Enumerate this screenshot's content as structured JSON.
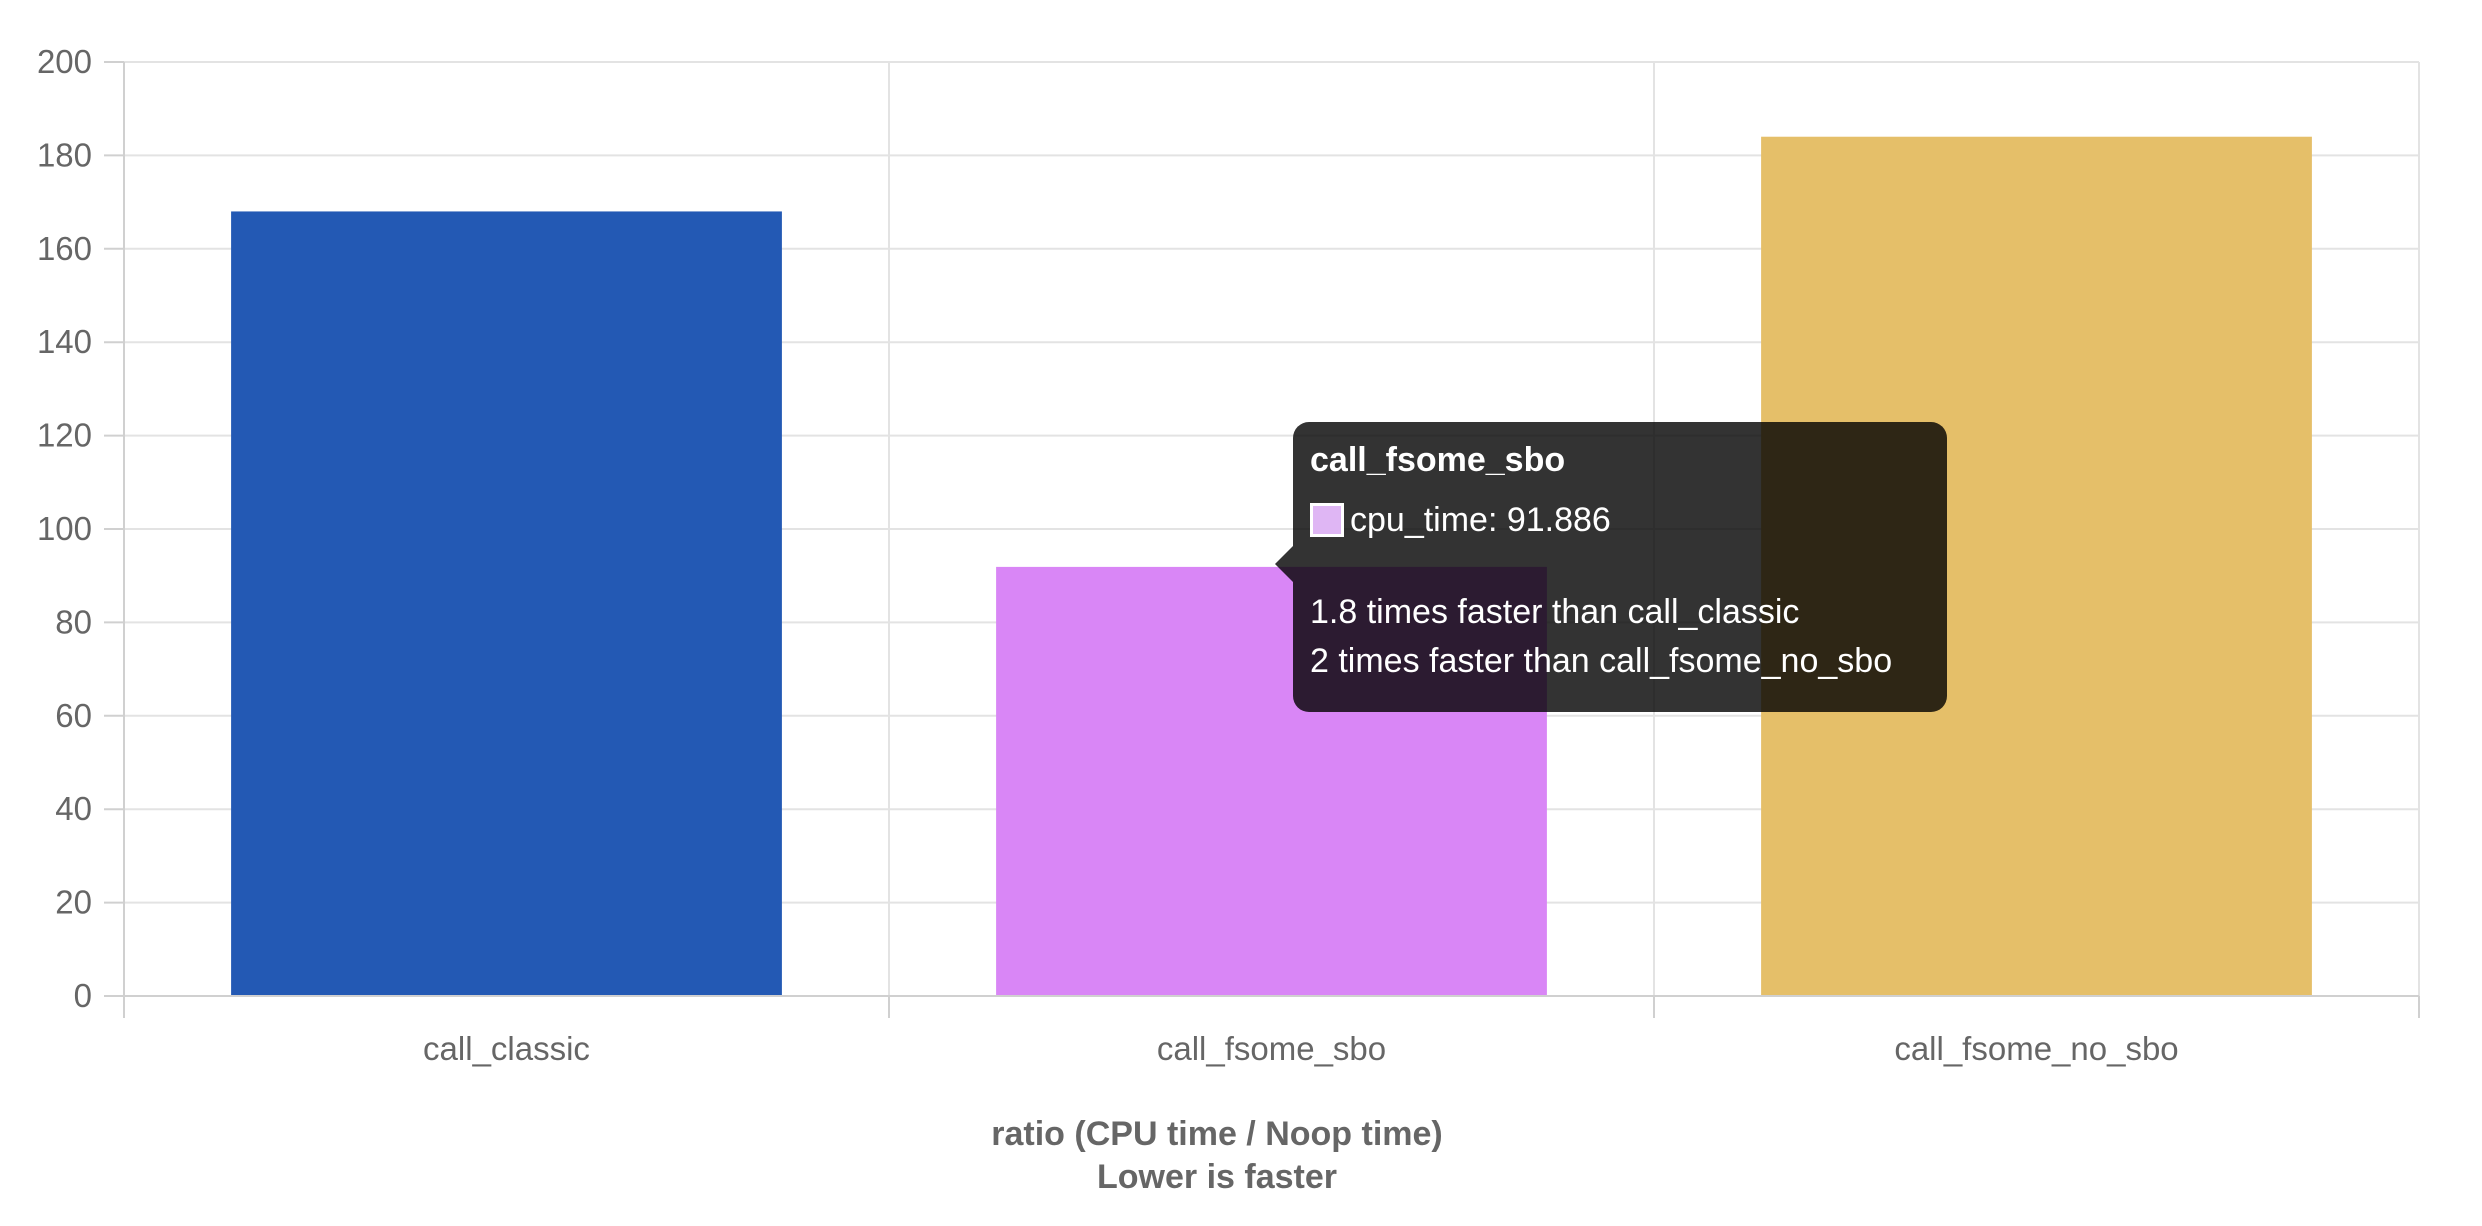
{
  "chart_data": {
    "type": "bar",
    "categories": [
      "call_classic",
      "call_fsome_sbo",
      "call_fsome_no_sbo"
    ],
    "series": [
      {
        "values": [
          168.0,
          91.886,
          184.0
        ],
        "colors": [
          "#2359b4",
          "#d986f6",
          "#e5bf69"
        ]
      }
    ],
    "xlabel": [
      "ratio (CPU time / Noop time)",
      "Lower is faster"
    ],
    "ylabel": "",
    "ylim": [
      0,
      200
    ],
    "yticks": [
      0,
      20,
      40,
      60,
      80,
      100,
      120,
      140,
      160,
      180,
      200
    ],
    "grid": true,
    "legend": "none"
  },
  "tooltip": {
    "title": "call_fsome_sbo",
    "swatch_color": "#dfb6f4",
    "value_text": "cpu_time: 91.886",
    "footer": [
      "1.8 times faster than call_classic",
      "2 times faster than call_fsome_no_sbo"
    ]
  }
}
